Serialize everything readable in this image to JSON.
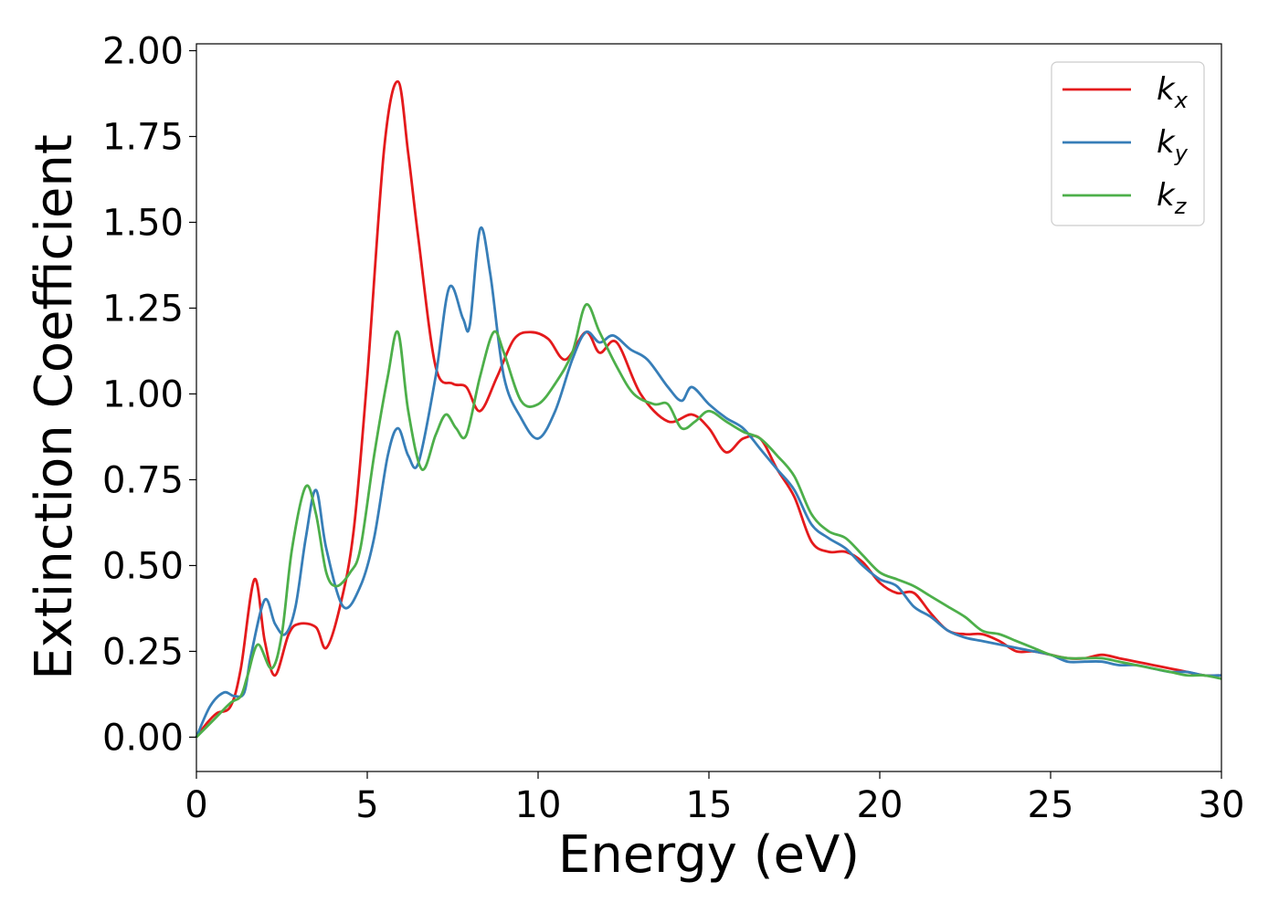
{
  "chart_data": {
    "type": "line",
    "title": "",
    "xlabel": "Energy (eV)",
    "ylabel": "Extinction Coefficient",
    "xlim": [
      0,
      30
    ],
    "ylim": [
      -0.1,
      2.02
    ],
    "xticks": [
      0,
      5,
      10,
      15,
      20,
      25,
      30
    ],
    "xtick_labels": [
      "0",
      "5",
      "10",
      "15",
      "20",
      "25",
      "30"
    ],
    "yticks": [
      0.0,
      0.25,
      0.5,
      0.75,
      1.0,
      1.25,
      1.5,
      1.75,
      2.0
    ],
    "ytick_labels": [
      "0.00",
      "0.25",
      "0.50",
      "0.75",
      "1.00",
      "1.25",
      "1.50",
      "1.75",
      "2.00"
    ],
    "grid": false,
    "legend_position": "top-right",
    "series": [
      {
        "name": "k",
        "subscript": "x",
        "color": "#e41a1c",
        "x": [
          0,
          0.3,
          0.6,
          1.0,
          1.3,
          1.7,
          2.0,
          2.3,
          2.7,
          3.0,
          3.5,
          3.8,
          4.2,
          4.6,
          5.0,
          5.5,
          5.9,
          6.2,
          6.5,
          7.0,
          7.5,
          7.9,
          8.3,
          8.8,
          9.3,
          9.8,
          10.3,
          10.8,
          11.4,
          11.8,
          12.3,
          13.0,
          13.8,
          14.5,
          15.0,
          15.5,
          16.0,
          16.5,
          17.0,
          17.5,
          18.0,
          18.5,
          19.0,
          19.5,
          20.0,
          20.5,
          21.0,
          21.5,
          22.0,
          22.5,
          23.0,
          23.5,
          24.0,
          24.5,
          25.0,
          25.5,
          26.0,
          26.5,
          27.0,
          27.5,
          28.0,
          28.5,
          29.0,
          29.5,
          30.0
        ],
        "y": [
          0.0,
          0.04,
          0.07,
          0.09,
          0.2,
          0.46,
          0.28,
          0.18,
          0.3,
          0.33,
          0.32,
          0.26,
          0.38,
          0.6,
          1.05,
          1.72,
          1.91,
          1.7,
          1.45,
          1.08,
          1.03,
          1.02,
          0.95,
          1.05,
          1.16,
          1.18,
          1.16,
          1.1,
          1.18,
          1.12,
          1.15,
          1.0,
          0.92,
          0.94,
          0.9,
          0.83,
          0.87,
          0.87,
          0.78,
          0.7,
          0.57,
          0.54,
          0.54,
          0.51,
          0.45,
          0.42,
          0.42,
          0.36,
          0.31,
          0.3,
          0.3,
          0.28,
          0.25,
          0.25,
          0.24,
          0.23,
          0.23,
          0.24,
          0.23,
          0.22,
          0.21,
          0.2,
          0.19,
          0.18,
          0.18
        ]
      },
      {
        "name": "k",
        "subscript": "y",
        "color": "#377eb8",
        "x": [
          0,
          0.4,
          0.8,
          1.1,
          1.4,
          1.6,
          2.0,
          2.3,
          2.6,
          2.9,
          3.2,
          3.5,
          3.8,
          4.3,
          4.8,
          5.2,
          5.6,
          5.9,
          6.2,
          6.5,
          7.0,
          7.4,
          7.8,
          8.0,
          8.3,
          8.6,
          9.0,
          9.5,
          10.0,
          10.5,
          11.0,
          11.4,
          11.8,
          12.2,
          12.7,
          13.2,
          13.8,
          14.2,
          14.5,
          15.0,
          15.5,
          16.0,
          16.5,
          17.0,
          17.5,
          18.0,
          18.5,
          19.0,
          19.5,
          20.0,
          20.5,
          21.0,
          21.5,
          22.0,
          22.5,
          23.0,
          23.5,
          24.0,
          24.5,
          25.0,
          25.5,
          26.0,
          26.5,
          27.0,
          27.5,
          28.0,
          28.5,
          29.0,
          29.5,
          30.0
        ],
        "y": [
          0.0,
          0.09,
          0.13,
          0.12,
          0.13,
          0.24,
          0.4,
          0.33,
          0.3,
          0.38,
          0.58,
          0.72,
          0.55,
          0.38,
          0.44,
          0.58,
          0.82,
          0.9,
          0.82,
          0.8,
          1.05,
          1.31,
          1.22,
          1.2,
          1.48,
          1.35,
          1.05,
          0.93,
          0.87,
          0.95,
          1.1,
          1.18,
          1.15,
          1.17,
          1.13,
          1.1,
          1.02,
          0.98,
          1.02,
          0.97,
          0.93,
          0.9,
          0.84,
          0.78,
          0.72,
          0.62,
          0.58,
          0.55,
          0.5,
          0.46,
          0.44,
          0.38,
          0.35,
          0.31,
          0.29,
          0.28,
          0.27,
          0.26,
          0.25,
          0.24,
          0.22,
          0.22,
          0.22,
          0.21,
          0.21,
          0.2,
          0.19,
          0.19,
          0.18,
          0.18
        ]
      },
      {
        "name": "k",
        "subscript": "z",
        "color": "#4daf4a",
        "x": [
          0,
          0.5,
          1.0,
          1.3,
          1.5,
          1.8,
          2.2,
          2.5,
          2.8,
          3.2,
          3.5,
          3.8,
          4.1,
          4.5,
          4.8,
          5.2,
          5.6,
          5.9,
          6.2,
          6.6,
          7.0,
          7.3,
          7.6,
          7.9,
          8.3,
          8.7,
          9.0,
          9.5,
          10.0,
          10.5,
          11.0,
          11.4,
          11.8,
          12.3,
          12.8,
          13.4,
          13.8,
          14.2,
          14.6,
          15.0,
          15.5,
          16.0,
          16.5,
          17.0,
          17.5,
          18.0,
          18.5,
          19.0,
          19.5,
          20.0,
          20.5,
          21.0,
          21.5,
          22.0,
          22.5,
          23.0,
          23.5,
          24.0,
          24.5,
          25.0,
          25.5,
          26.0,
          26.5,
          27.0,
          27.5,
          28.0,
          28.5,
          29.0,
          29.5,
          30.0
        ],
        "y": [
          0.0,
          0.05,
          0.1,
          0.12,
          0.18,
          0.27,
          0.2,
          0.3,
          0.55,
          0.73,
          0.65,
          0.48,
          0.44,
          0.48,
          0.55,
          0.82,
          1.05,
          1.18,
          0.95,
          0.78,
          0.88,
          0.94,
          0.9,
          0.88,
          1.05,
          1.18,
          1.12,
          0.98,
          0.97,
          1.03,
          1.12,
          1.26,
          1.18,
          1.08,
          1.0,
          0.97,
          0.97,
          0.9,
          0.92,
          0.95,
          0.92,
          0.89,
          0.87,
          0.82,
          0.76,
          0.65,
          0.6,
          0.58,
          0.53,
          0.48,
          0.46,
          0.44,
          0.41,
          0.38,
          0.35,
          0.31,
          0.3,
          0.28,
          0.26,
          0.24,
          0.23,
          0.23,
          0.23,
          0.22,
          0.21,
          0.2,
          0.19,
          0.18,
          0.18,
          0.17
        ]
      }
    ]
  }
}
